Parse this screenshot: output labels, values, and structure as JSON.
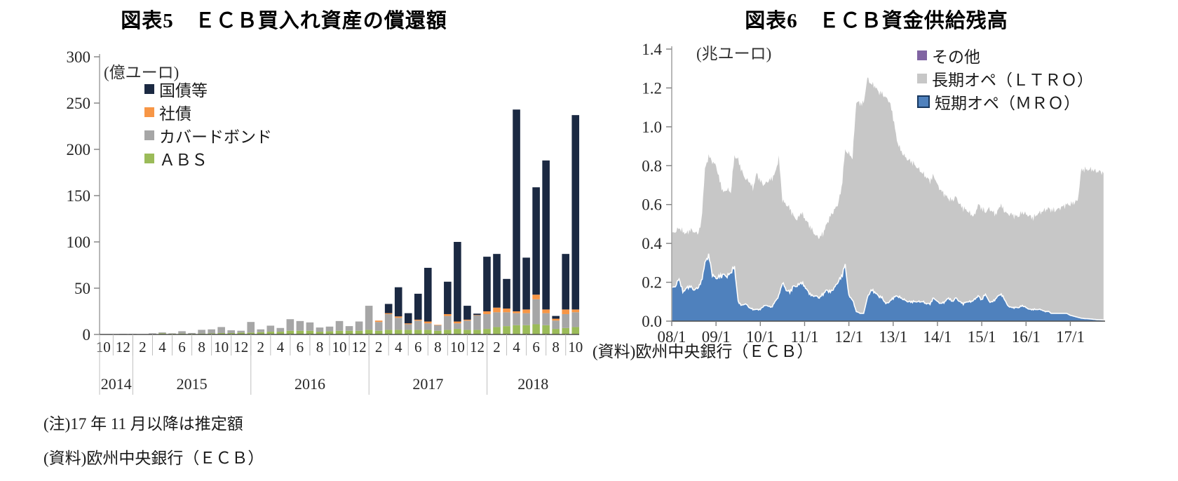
{
  "chart_data": [
    {
      "type": "bar",
      "stacked": true,
      "title": "図表5　ＥＣＢ買入れ資産の償還額",
      "unit_label": "(億ユーロ)",
      "ylabel": "",
      "ylim": [
        0,
        300
      ],
      "yticks": [
        0,
        50,
        100,
        150,
        200,
        250,
        300
      ],
      "start_month": "2014/10",
      "months_count": 49,
      "month_tick_labels": [
        "10",
        "12",
        "2",
        "4",
        "6",
        "8",
        "10",
        "12",
        "2",
        "4",
        "6",
        "8",
        "10",
        "12",
        "2",
        "4",
        "6",
        "8",
        "10",
        "12",
        "2",
        "4",
        "6",
        "8",
        "10"
      ],
      "year_labels": [
        "2014",
        "2015",
        "2016",
        "2017",
        "2018"
      ],
      "legend": [
        {
          "label": "国債等",
          "color": "#1B2942"
        },
        {
          "label": "社債",
          "color": "#F79646"
        },
        {
          "label": "カバードボンド",
          "color": "#A6A6A6"
        },
        {
          "label": "ＡＢＳ",
          "color": "#9BBB59"
        }
      ],
      "series": [
        {
          "name": "ＡＢＳ",
          "key": "abs",
          "color": "#9BBB59",
          "values": [
            0,
            0,
            0,
            0,
            0,
            0.4,
            1.2,
            0.8,
            1.0,
            0.8,
            1.0,
            1.2,
            1.5,
            1.5,
            2.0,
            2.0,
            2.5,
            3.0,
            3.0,
            4.0,
            4.0,
            4.0,
            3.0,
            3.5,
            4.0,
            4.0,
            4.0,
            5.0,
            4.0,
            5.0,
            5.0,
            5.0,
            5.0,
            5.0,
            4.0,
            5.0,
            6.0,
            5.0,
            5.0,
            6.0,
            8.0,
            9.0,
            10.0,
            10.0,
            11.0,
            10.0,
            6.0,
            7.0,
            8.0
          ]
        },
        {
          "name": "カバードボンド",
          "key": "covered",
          "color": "#A6A6A6",
          "values": [
            0,
            0.4,
            0.6,
            0.6,
            0.4,
            0.8,
            1.0,
            0.4,
            2.5,
            0.8,
            4.0,
            4.3,
            6.5,
            3.0,
            2.0,
            11.5,
            3.0,
            6.5,
            4.0,
            12.5,
            10.5,
            9.0,
            4.5,
            5.0,
            10.5,
            5.0,
            10.0,
            26.0,
            9.5,
            17.0,
            13.0,
            6.0,
            10.0,
            7.0,
            6.0,
            15.0,
            6.0,
            10.0,
            15.5,
            16.0,
            16.0,
            15.0,
            13.0,
            13.0,
            27.0,
            13.0,
            9.0,
            15.0,
            16.0
          ]
        },
        {
          "name": "社債",
          "key": "corporate",
          "color": "#F79646",
          "values": [
            0,
            0,
            0,
            0,
            0,
            0,
            0,
            0,
            0,
            0,
            0,
            0,
            0,
            0,
            0,
            0,
            0,
            0,
            0,
            0,
            0,
            0,
            0,
            0,
            0,
            0,
            0,
            0,
            1.5,
            1.0,
            1.5,
            1.0,
            1.0,
            2.0,
            0.5,
            2.0,
            2.0,
            1.0,
            0.5,
            3.0,
            5.0,
            4.0,
            2.0,
            4.0,
            5.0,
            4.0,
            2.0,
            5.0,
            3.0
          ]
        },
        {
          "name": "国債等",
          "key": "government",
          "color": "#1B2942",
          "values": [
            0,
            0,
            0,
            0,
            0,
            0,
            0,
            0,
            0,
            0,
            0,
            0,
            0,
            0,
            0,
            0,
            0,
            0,
            0,
            0,
            0,
            0,
            0,
            0,
            0,
            0,
            0,
            0,
            0,
            10.0,
            31.5,
            11.0,
            28.0,
            58.0,
            0,
            35.0,
            86.0,
            15.0,
            1.5,
            59.0,
            58.0,
            32.0,
            218.0,
            56.0,
            116.0,
            161.0,
            3.0,
            60.0,
            210.0
          ]
        }
      ],
      "note": "(注)17 年 11 月以降は推定額",
      "source": "(資料)欧州中央銀行（ＥＣＢ）"
    },
    {
      "type": "area",
      "stacked": true,
      "title": "図表6　ＥＣＢ資金供給残高",
      "unit_label": "(兆ユーロ)",
      "ylim": [
        0,
        1.4
      ],
      "ytick_labels": [
        "0.0",
        "0.2",
        "0.4",
        "0.6",
        "0.8",
        "1.0",
        "1.2",
        "1.4"
      ],
      "xtick_labels": [
        "08/1",
        "09/1",
        "10/1",
        "11/1",
        "12/1",
        "13/1",
        "14/1",
        "15/1",
        "16/1",
        "17/1"
      ],
      "start_month": "2008/1",
      "legend": [
        {
          "label": "その他",
          "color": "#8064A2"
        },
        {
          "label": "長期オペ（ＬＴＲＯ）",
          "color": "#C7C7C7"
        },
        {
          "label": "短期オペ（ＭＲＯ）",
          "color": "#4F81BD",
          "border": "#17375E"
        }
      ],
      "series_mro": {
        "name": "短期オペ（ＭＲＯ）",
        "color": "#4F81BD",
        "values": [
          0.17,
          0.18,
          0.22,
          0.15,
          0.17,
          0.18,
          0.16,
          0.17,
          0.2,
          0.3,
          0.34,
          0.24,
          0.22,
          0.23,
          0.24,
          0.23,
          0.25,
          0.28,
          0.1,
          0.08,
          0.09,
          0.07,
          0.06,
          0.06,
          0.06,
          0.08,
          0.08,
          0.07,
          0.1,
          0.13,
          0.2,
          0.16,
          0.15,
          0.18,
          0.18,
          0.2,
          0.18,
          0.15,
          0.13,
          0.13,
          0.12,
          0.14,
          0.16,
          0.15,
          0.17,
          0.2,
          0.23,
          0.29,
          0.13,
          0.11,
          0.05,
          0.04,
          0.04,
          0.12,
          0.16,
          0.15,
          0.13,
          0.12,
          0.09,
          0.1,
          0.12,
          0.13,
          0.12,
          0.11,
          0.1,
          0.1,
          0.1,
          0.1,
          0.1,
          0.09,
          0.09,
          0.12,
          0.1,
          0.09,
          0.1,
          0.12,
          0.1,
          0.12,
          0.1,
          0.09,
          0.1,
          0.1,
          0.11,
          0.13,
          0.11,
          0.14,
          0.1,
          0.1,
          0.12,
          0.14,
          0.12,
          0.08,
          0.07,
          0.07,
          0.07,
          0.08,
          0.07,
          0.06,
          0.06,
          0.06,
          0.06,
          0.05,
          0.05,
          0.04,
          0.04,
          0.04,
          0.04,
          0.04,
          0.03,
          0.025,
          0.02,
          0.015,
          0.013,
          0.012,
          0.01,
          0.008,
          0.007,
          0.006
        ]
      },
      "series_total": {
        "name": "合計(LTRO上端)",
        "color": "#C7C7C7",
        "values": [
          0.45,
          0.46,
          0.48,
          0.46,
          0.45,
          0.47,
          0.46,
          0.45,
          0.5,
          0.78,
          0.85,
          0.82,
          0.8,
          0.72,
          0.66,
          0.68,
          0.66,
          0.85,
          0.83,
          0.77,
          0.73,
          0.72,
          0.68,
          0.76,
          0.72,
          0.7,
          0.72,
          0.73,
          0.76,
          0.84,
          0.62,
          0.6,
          0.58,
          0.54,
          0.52,
          0.56,
          0.53,
          0.5,
          0.47,
          0.44,
          0.43,
          0.45,
          0.5,
          0.54,
          0.57,
          0.6,
          0.68,
          0.88,
          0.86,
          0.84,
          1.13,
          1.12,
          1.12,
          1.25,
          1.22,
          1.21,
          1.18,
          1.17,
          1.15,
          1.13,
          1.05,
          0.93,
          0.88,
          0.85,
          0.83,
          0.82,
          0.8,
          0.78,
          0.76,
          0.74,
          0.72,
          0.75,
          0.7,
          0.67,
          0.65,
          0.63,
          0.62,
          0.64,
          0.6,
          0.58,
          0.57,
          0.55,
          0.54,
          0.6,
          0.58,
          0.56,
          0.58,
          0.56,
          0.55,
          0.6,
          0.57,
          0.55,
          0.55,
          0.54,
          0.54,
          0.56,
          0.55,
          0.54,
          0.53,
          0.55,
          0.56,
          0.57,
          0.58,
          0.57,
          0.57,
          0.58,
          0.59,
          0.6,
          0.6,
          0.61,
          0.62,
          0.78,
          0.78,
          0.78,
          0.78,
          0.77,
          0.77,
          0.76
        ]
      },
      "source": "(資料)欧州中央銀行（ＥＣＢ）"
    }
  ]
}
